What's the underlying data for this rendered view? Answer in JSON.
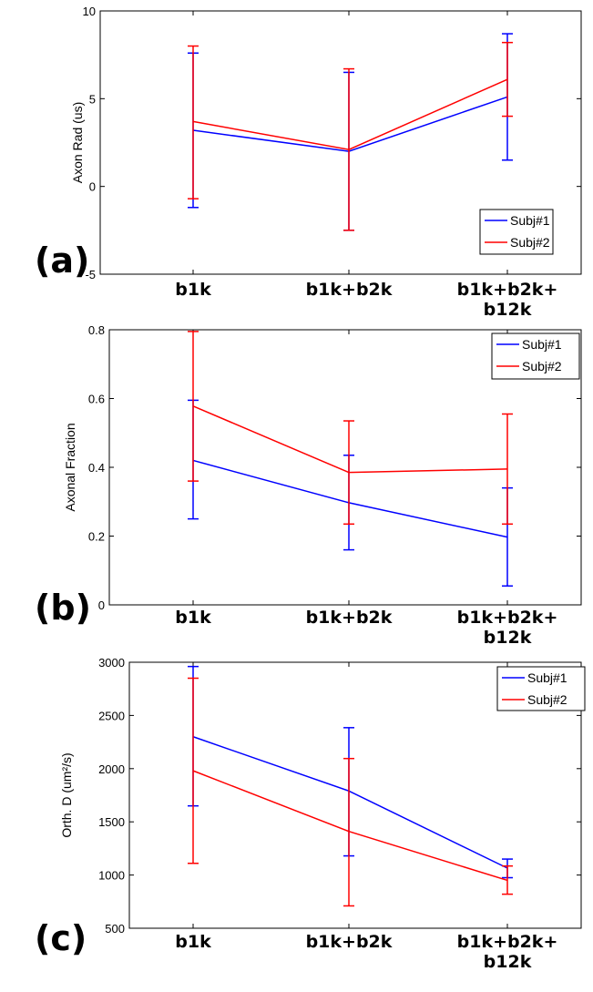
{
  "chart_data": [
    {
      "type": "line",
      "panel_label": "(a)",
      "ylabel": "Axon Rad (us)",
      "ylim": [
        -5,
        10
      ],
      "yticks": [
        "-5",
        "0",
        "5",
        "10"
      ],
      "categories": [
        "b1k",
        "b1k+b2k",
        "b1k+b2k+\nb12k"
      ],
      "category_lines": [
        [
          "b1k"
        ],
        [
          "b1k+b2k"
        ],
        [
          "b1k+b2k+",
          "b12k"
        ]
      ],
      "legend": {
        "position": "bottom-right",
        "entries": [
          "Subj#1",
          "Subj#2"
        ]
      },
      "series": [
        {
          "name": "Subj#1",
          "color": "#0000ff",
          "values": [
            3.2,
            2.0,
            5.1
          ],
          "err_low": [
            -1.2,
            -2.5,
            1.5
          ],
          "err_high": [
            7.6,
            6.5,
            8.7
          ]
        },
        {
          "name": "Subj#2",
          "color": "#ff0000",
          "values": [
            3.7,
            2.1,
            6.1
          ],
          "err_low": [
            -0.7,
            -2.5,
            4.0
          ],
          "err_high": [
            8.0,
            6.7,
            8.2
          ]
        }
      ]
    },
    {
      "type": "line",
      "panel_label": "(b)",
      "ylabel": "Axonal Fraction",
      "ylim": [
        0,
        0.8
      ],
      "yticks": [
        "0",
        "0.2",
        "0.4",
        "0.6",
        "0.8"
      ],
      "categories": [
        "b1k",
        "b1k+b2k",
        "b1k+b2k+\nb12k"
      ],
      "category_lines": [
        [
          "b1k"
        ],
        [
          "b1k+b2k"
        ],
        [
          "b1k+b2k+",
          "b12k"
        ]
      ],
      "legend": {
        "position": "top-right",
        "entries": [
          "Subj#1",
          "Subj#2"
        ]
      },
      "series": [
        {
          "name": "Subj#1",
          "color": "#0000ff",
          "values": [
            0.42,
            0.297,
            0.197
          ],
          "err_low": [
            0.25,
            0.16,
            0.055
          ],
          "err_high": [
            0.595,
            0.435,
            0.34
          ]
        },
        {
          "name": "Subj#2",
          "color": "#ff0000",
          "values": [
            0.578,
            0.385,
            0.395
          ],
          "err_low": [
            0.36,
            0.235,
            0.235
          ],
          "err_high": [
            0.795,
            0.535,
            0.555
          ]
        }
      ]
    },
    {
      "type": "line",
      "panel_label": "(c)",
      "ylabel": "Orth. D (um²/s)",
      "ylim": [
        500,
        3000
      ],
      "yticks": [
        "500",
        "1000",
        "1500",
        "2000",
        "2500",
        "3000"
      ],
      "categories": [
        "b1k",
        "b1k+b2k",
        "b1k+b2k+\nb12k"
      ],
      "category_lines": [
        [
          "b1k"
        ],
        [
          "b1k+b2k"
        ],
        [
          "b1k+b2k+",
          "b12k"
        ]
      ],
      "legend": {
        "position": "top-right",
        "entries": [
          "Subj#1",
          "Subj#2"
        ]
      },
      "series": [
        {
          "name": "Subj#1",
          "color": "#0000ff",
          "values": [
            2300,
            1790,
            1065
          ],
          "err_low": [
            1650,
            1180,
            975
          ],
          "err_high": [
            2960,
            2385,
            1150
          ]
        },
        {
          "name": "Subj#2",
          "color": "#ff0000",
          "values": [
            1980,
            1410,
            950
          ],
          "err_low": [
            1110,
            710,
            820
          ],
          "err_high": [
            2850,
            2095,
            1085
          ]
        }
      ]
    }
  ]
}
